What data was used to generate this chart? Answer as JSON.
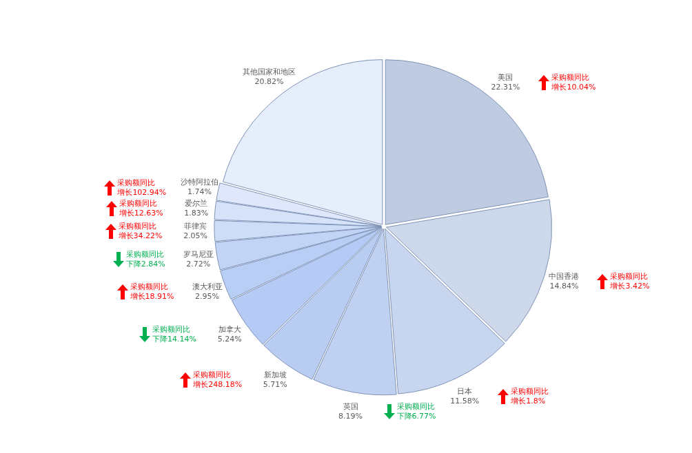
{
  "chart_data": {
    "type": "pie",
    "categories": [
      "美国",
      "中国香港",
      "日本",
      "英国",
      "新加坡",
      "加拿大",
      "澳大利亚",
      "罗马尼亚",
      "菲律宾",
      "爱尔兰",
      "沙特阿拉伯",
      "其他国家和地区"
    ],
    "values": [
      22.31,
      14.84,
      11.58,
      8.19,
      5.71,
      5.24,
      2.95,
      2.72,
      2.05,
      1.83,
      1.74,
      20.82
    ],
    "value_labels": [
      "22.31%",
      "14.84%",
      "11.58%",
      "8.19%",
      "5.71%",
      "5.24%",
      "2.95%",
      "2.72%",
      "2.05%",
      "1.83%",
      "1.74%",
      "20.82%"
    ],
    "colors": [
      "#bfcbe0",
      "#cdd8ea",
      "#c8d5ee",
      "#c0d0f0",
      "#b9cdf3",
      "#b5cbf5",
      "#b9cef5",
      "#c2d4f5",
      "#cddcf7",
      "#d6e2f8",
      "#dfe8fa",
      "#e6edfb"
    ],
    "legend": false,
    "annotations": [
      {
        "text": "采购额同比增长10.04%",
        "x": "美国"
      },
      {
        "text": "采购额同比增长3.42%",
        "x": "中国香港"
      },
      {
        "text": "采购额同比增长1.8%",
        "x": "日本"
      },
      {
        "text": "采购额同比下降6.77%",
        "x": "英国"
      },
      {
        "text": "采购额同比增长248.18%",
        "x": "新加坡"
      },
      {
        "text": "采购额同比下降14.14%",
        "x": "加拿大"
      },
      {
        "text": "采购额同比增长18.91%",
        "x": "澳大利亚"
      },
      {
        "text": "采购额同比下降2.84%",
        "x": "罗马尼亚"
      },
      {
        "text": "采购额同比增长34.22%",
        "x": "菲律宾"
      },
      {
        "text": "采购额同比增长12.63%",
        "x": "爱尔兰"
      },
      {
        "text": "采购额同比增长102.94%",
        "x": "沙特阿拉伯"
      }
    ]
  }
}
